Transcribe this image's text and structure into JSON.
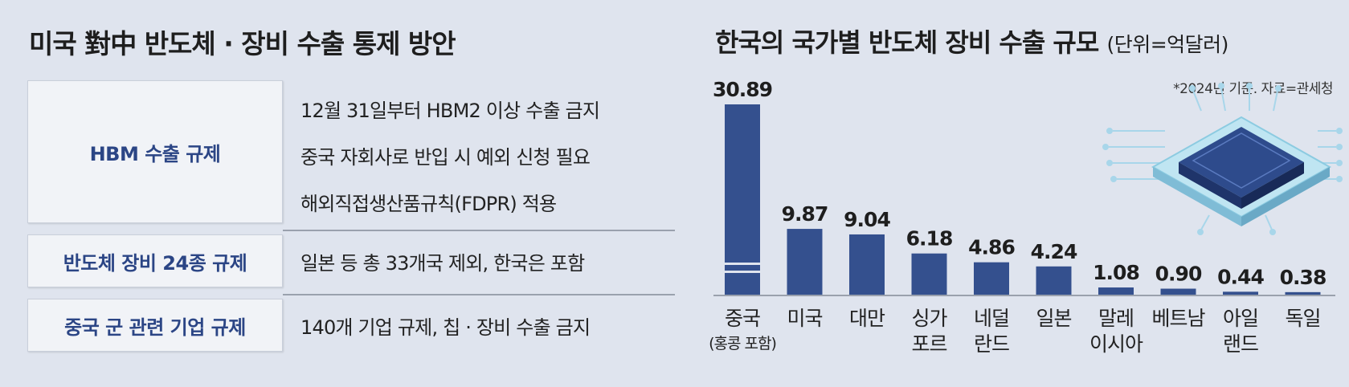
{
  "left": {
    "title": "미국 對中 반도체 · 장비 수출 통제 방안",
    "rows": [
      {
        "label": "HBM 수출 규제",
        "lines": [
          "12월 31일부터 HBM2 이상 수출 금지",
          "중국 자회사로 반입 시 예외 신청 필요",
          "해외직접생산품규칙(FDPR) 적용"
        ]
      },
      {
        "label": "반도체 장비 24종 규제",
        "lines": [
          "일본 등 총 33개국 제외, 한국은 포함"
        ]
      },
      {
        "label": "중국 군 관련 기업 규제",
        "lines": [
          "140개 기업 규제, 칩 · 장비 수출 금지"
        ]
      }
    ]
  },
  "chart_data": {
    "type": "bar",
    "title": "한국의 국가별 반도체 장비 수출 규모",
    "unit": "(단위=억달러)",
    "note": "*2024년 기준. 자료=관세청",
    "categories": [
      [
        "중국",
        "(홍콩 포함)"
      ],
      [
        "미국"
      ],
      [
        "대만"
      ],
      [
        "싱가",
        "포르"
      ],
      [
        "네덜",
        "란드"
      ],
      [
        "일본"
      ],
      [
        "말레",
        "이시아"
      ],
      [
        "베트남"
      ],
      [
        "아일",
        "랜드"
      ],
      [
        "독일"
      ]
    ],
    "values": [
      30.89,
      9.87,
      9.04,
      6.18,
      4.86,
      4.24,
      1.08,
      0.9,
      0.44,
      0.38
    ],
    "value_labels": [
      "30.89",
      "9.87",
      "9.04",
      "6.18",
      "4.86",
      "4.24",
      "1.08",
      "0.90",
      "0.44",
      "0.38"
    ],
    "axis_break_on_first_bar": true,
    "bar_color": "#34508e"
  }
}
